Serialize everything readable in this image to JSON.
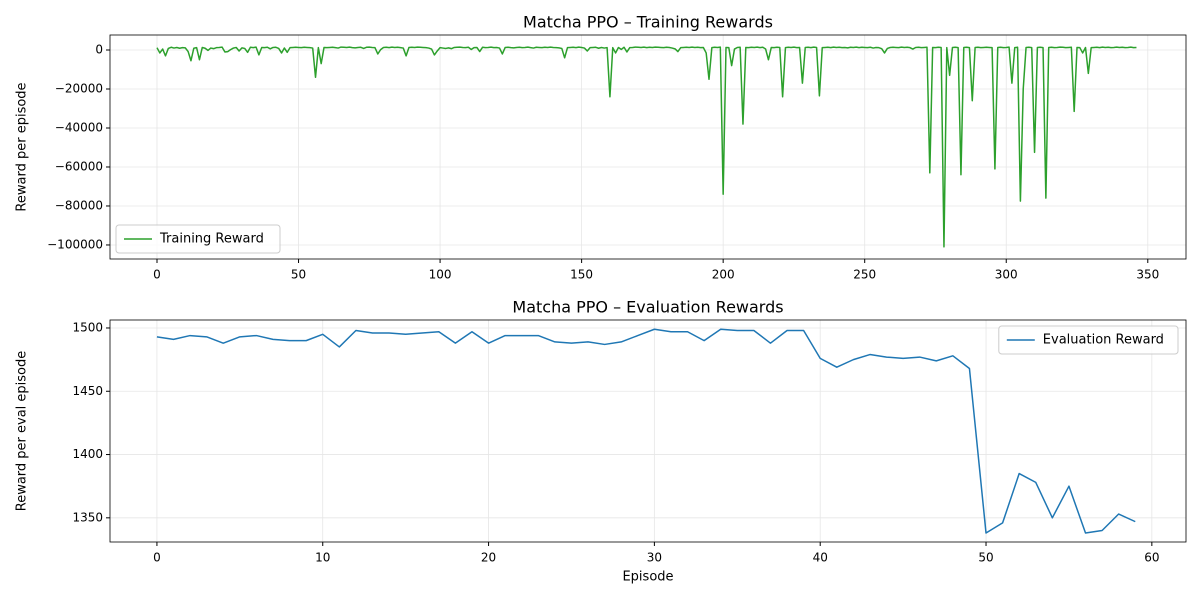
{
  "chart_data": [
    {
      "type": "line",
      "title": "Matcha PPO – Training Rewards",
      "ylabel": "Reward per episode",
      "xlim": [
        -16.6,
        363.5
      ],
      "xticks": [
        0,
        50,
        100,
        150,
        200,
        250,
        300,
        350
      ],
      "ylim": [
        -107200,
        7700
      ],
      "yticks": [
        {
          "value": -100000,
          "label": "−100000"
        },
        {
          "value": -80000,
          "label": "−80000"
        },
        {
          "value": -60000,
          "label": "−60000"
        },
        {
          "value": -40000,
          "label": "−40000"
        },
        {
          "value": -20000,
          "label": "−20000"
        },
        0
      ],
      "grid": true,
      "legend": "lower left",
      "series": [
        {
          "name": "Training Reward",
          "color": "#2ca02c",
          "values": [
            1200,
            -1500,
            500,
            -3000,
            800,
            1400,
            1000,
            1300,
            900,
            1200,
            1100,
            -800,
            -5500,
            900,
            1200,
            -5000,
            1300,
            900,
            -200,
            1000,
            700,
            1200,
            1300,
            1500,
            -1000,
            -800,
            200,
            1000,
            1300,
            -500,
            1100,
            800,
            -1200,
            1400,
            1200,
            1500,
            -2500,
            1300,
            1200,
            1400,
            600,
            1300,
            1400,
            800,
            -1500,
            1000,
            -1200,
            1200,
            1300,
            1400,
            1300,
            1200,
            1400,
            1300,
            1200,
            1000,
            -14000,
            1200,
            -7000,
            1300,
            1200,
            1300,
            1400,
            1200,
            1000,
            1500,
            1400,
            1300,
            1500,
            1200,
            1100,
            1300,
            1400,
            800,
            1400,
            1500,
            1300,
            1200,
            -2000,
            200,
            1300,
            1400,
            1200,
            1500,
            1300,
            1400,
            1200,
            1000,
            -3000,
            1300,
            1400,
            1300,
            1500,
            1400,
            1300,
            1200,
            1000,
            500,
            -2500,
            -500,
            1200,
            1000,
            800,
            1100,
            700,
            1300,
            1400,
            1500,
            1300,
            1200,
            1400,
            300,
            1200,
            1300,
            -800,
            1400,
            1200,
            1300,
            1500,
            1200,
            1300,
            1000,
            -2000,
            1300,
            1400,
            1200,
            1100,
            1300,
            1400,
            1200,
            1300,
            1500,
            1200,
            1000,
            1400,
            1300,
            1200,
            1400,
            1300,
            1500,
            1300,
            1200,
            1100,
            800,
            -4000,
            1200,
            1300,
            1400,
            1200,
            1500,
            1300,
            1000,
            -500,
            1200,
            1300,
            1400,
            900,
            1300,
            1000,
            1200,
            -24000,
            1200,
            -1500,
            1300,
            300,
            1400,
            -1000,
            1200,
            1300,
            1500,
            1400,
            1300,
            1500,
            1200,
            1400,
            1300,
            1500,
            1400,
            1300,
            1200,
            1400,
            1300,
            1000,
            600,
            -800,
            1200,
            1300,
            1400,
            1300,
            1500,
            1300,
            1400,
            1200,
            1300,
            -1500,
            -15000,
            1200,
            1400,
            1300,
            1500,
            -74000,
            1300,
            1200,
            -8000,
            500,
            1300,
            1400,
            -38000,
            1300,
            1200,
            1400,
            1300,
            1500,
            1200,
            1400,
            500,
            -5000,
            1300,
            1200,
            1400,
            1300,
            -24000,
            1200,
            1400,
            1300,
            1500,
            1200,
            1300,
            -17000,
            1300,
            1400,
            1200,
            1500,
            1300,
            -23500,
            1200,
            1300,
            1400,
            1200,
            1500,
            1300,
            1400,
            1200,
            1300,
            1100,
            1400,
            1300,
            1500,
            1200,
            1400,
            1300,
            1200,
            1400,
            1000,
            1300,
            1200,
            700,
            -1500,
            800,
            1300,
            1400,
            1300,
            1200,
            1500,
            1300,
            1400,
            1200,
            500,
            1300,
            1400,
            1200,
            1300,
            1400,
            -63000,
            1300,
            1200,
            1400,
            1300,
            -101000,
            1200,
            -13000,
            1300,
            1400,
            1200,
            -64000,
            1300,
            1400,
            1200,
            -26000,
            1300,
            1400,
            1200,
            1300,
            1400,
            1300,
            1200,
            -61000,
            1300,
            1400,
            1200,
            1300,
            1500,
            -17000,
            1200,
            1400,
            -77500,
            -20000,
            1300,
            1400,
            1200,
            -52500,
            1300,
            1400,
            1200,
            -76000,
            1300,
            1400,
            1200,
            1300,
            1500,
            1400,
            1200,
            1300,
            1400,
            -31500,
            1300,
            1200,
            -1500,
            1300,
            -12000,
            1200,
            1300,
            1400,
            1200,
            1500,
            1300,
            1400,
            1200,
            1300,
            1500,
            1300,
            1400,
            1200,
            1300,
            1500,
            1200,
            1300
          ]
        }
      ]
    },
    {
      "type": "line",
      "title": "Matcha PPO – Evaluation Rewards",
      "xlabel": "Episode",
      "ylabel": "Reward per eval episode",
      "xlim": [
        -2.83,
        62.06
      ],
      "xticks": [
        0,
        10,
        20,
        30,
        40,
        50,
        60
      ],
      "ylim": [
        1330.9,
        1506.3
      ],
      "yticks": [
        1350,
        1400,
        1450,
        1500
      ],
      "grid": true,
      "legend": "upper right",
      "series": [
        {
          "name": "Evaluation Reward",
          "color": "#1f77b4",
          "values": [
            1493,
            1491,
            1494,
            1493,
            1488,
            1493,
            1494,
            1491,
            1490,
            1490,
            1495,
            1485,
            1498,
            1496,
            1496,
            1495,
            1496,
            1497,
            1488,
            1497,
            1488,
            1494,
            1494,
            1494,
            1489,
            1488,
            1489,
            1487,
            1489,
            1494,
            1499,
            1497,
            1497,
            1490,
            1499,
            1498,
            1498,
            1488,
            1498,
            1498,
            1476,
            1469,
            1475,
            1479,
            1477,
            1476,
            1477,
            1474,
            1478,
            1468,
            1338,
            1346,
            1385,
            1378,
            1350,
            1375,
            1338,
            1340,
            1353,
            1347
          ]
        }
      ]
    }
  ]
}
